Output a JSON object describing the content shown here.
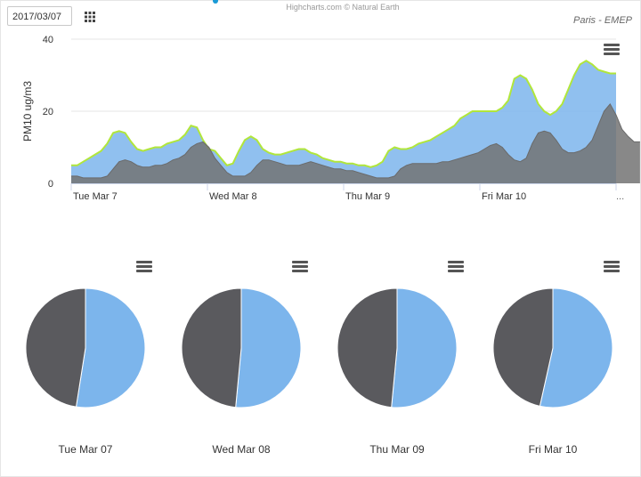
{
  "toolbar": {
    "date_value": "2017/03/07",
    "calendar_icon": "calendar-grid-icon"
  },
  "credits": "Highcharts.com © Natural Earth",
  "station": "Paris - EMEP",
  "menu_icon": "hamburger-menu-icon",
  "colors": {
    "total": "#7cb5ec",
    "outline": "#b1e63b",
    "dark": "#737373",
    "pie_dark": "#5a5a5e"
  },
  "chart_data": [
    {
      "type": "area",
      "ylabel": "PM10 ug/m3",
      "ylim": [
        0,
        40
      ],
      "yticks": [
        0,
        20,
        40
      ],
      "x_unit": "hours since Tue Mar 7 00:00",
      "xlim": [
        0,
        96
      ],
      "xticks": [
        {
          "x": 0,
          "label": "Tue Mar 7"
        },
        {
          "x": 24,
          "label": "Wed Mar 8"
        },
        {
          "x": 48,
          "label": "Thu Mar 9"
        },
        {
          "x": 72,
          "label": "Fri Mar 10"
        }
      ],
      "overflow_label": "...",
      "grid": true,
      "series": [
        {
          "values": [
            5,
            5,
            6,
            7,
            8,
            9,
            11,
            14,
            14.5,
            14,
            11.5,
            9.5,
            9,
            9.5,
            10,
            10,
            11,
            11.5,
            12,
            13.5,
            16,
            15.5,
            12,
            9.5,
            9,
            7,
            5,
            5.5,
            9,
            12,
            13,
            12,
            9.5,
            8.5,
            8,
            8,
            8.5,
            9,
            9.5,
            9.5,
            8.5,
            8,
            7,
            6.5,
            6,
            6,
            5.5,
            5.5,
            5,
            5,
            4.5,
            5,
            6,
            9,
            10,
            9.5,
            9.5,
            10,
            11,
            11.5,
            12,
            13,
            14,
            15,
            16,
            18,
            19,
            20,
            20,
            20,
            20,
            20,
            21,
            23,
            29,
            30,
            29,
            26,
            22,
            20,
            19,
            20,
            22,
            26,
            30,
            33,
            34,
            33,
            31.5,
            31,
            30.5,
            30.5
          ]
        },
        {
          "values": [
            2,
            2,
            1.5,
            1.5,
            1.5,
            1.5,
            2,
            4,
            6,
            6.5,
            6,
            5,
            4.5,
            4.5,
            5,
            5,
            5.5,
            6.5,
            7,
            8,
            10,
            11,
            11.5,
            10,
            7,
            5,
            3,
            2,
            2,
            2,
            3,
            5,
            6.5,
            6.5,
            6,
            5.5,
            5,
            5,
            5,
            5.5,
            6,
            5.5,
            5,
            4.5,
            4,
            4,
            3.5,
            3.5,
            3,
            2.5,
            2,
            1.5,
            1.5,
            1.5,
            2,
            4,
            5,
            5.5,
            5.5,
            5.5,
            5.5,
            5.5,
            6,
            6,
            6.5,
            7,
            7.5,
            8,
            8.5,
            9.5,
            10.5,
            11,
            10,
            8,
            6.5,
            6,
            7,
            11,
            14,
            14.5,
            14,
            12,
            9.5,
            8.5,
            8.5,
            9,
            10,
            12,
            16,
            20,
            22,
            19,
            15,
            13,
            11.5,
            11.5
          ]
        }
      ]
    },
    {
      "type": "pie",
      "title": "Tue Mar 07",
      "values": [
        52.5,
        47.5
      ]
    },
    {
      "type": "pie",
      "title": "Wed Mar 08",
      "values": [
        51.5,
        48.5
      ]
    },
    {
      "type": "pie",
      "title": "Thu Mar 09",
      "values": [
        51.5,
        48.5
      ]
    },
    {
      "type": "pie",
      "title": "Fri Mar 10",
      "values": [
        53.5,
        46.5
      ]
    }
  ]
}
